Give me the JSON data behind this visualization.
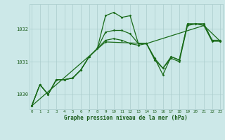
{
  "xlabel": "Graphe pression niveau de la mer (hPa)",
  "x_ticks": [
    0,
    1,
    2,
    3,
    4,
    5,
    6,
    7,
    8,
    9,
    10,
    11,
    12,
    13,
    14,
    15,
    16,
    17,
    18,
    19,
    20,
    21,
    22,
    23
  ],
  "y_ticks": [
    1030,
    1031,
    1032
  ],
  "ylim": [
    1029.55,
    1032.75
  ],
  "xlim": [
    -0.3,
    23.3
  ],
  "bg_color": "#cce8e8",
  "grid_color": "#aacccc",
  "line_color": "#1a6b1a",
  "font_color": "#1a5c1a",
  "line1": [
    1029.65,
    1030.3,
    1030.0,
    1030.45,
    1030.45,
    1030.5,
    1030.75,
    1031.15,
    1031.4,
    1032.4,
    1032.5,
    1032.35,
    1032.4,
    1031.55,
    1031.55,
    1031.1,
    1030.6,
    1031.15,
    1031.05,
    1032.15,
    1032.15,
    1032.15,
    1031.65,
    1031.65
  ],
  "line2": [
    1029.65,
    1030.3,
    1030.0,
    1030.45,
    1030.45,
    1030.5,
    1030.75,
    1031.15,
    1031.4,
    1031.9,
    1031.95,
    1031.95,
    1031.85,
    1031.55,
    1031.55,
    1031.1,
    1030.8,
    1031.15,
    1031.05,
    1032.15,
    1032.15,
    1032.15,
    1031.65,
    1031.65
  ],
  "line3": [
    1029.65,
    1030.3,
    1030.0,
    1030.45,
    1030.45,
    1030.5,
    1030.75,
    1031.15,
    1031.4,
    1031.65,
    1031.7,
    1031.65,
    1031.55,
    1031.5,
    1031.55,
    1031.05,
    1030.8,
    1031.1,
    1031.0,
    1032.1,
    1032.15,
    1032.1,
    1031.62,
    1031.62
  ],
  "line4_x": [
    0,
    9,
    14,
    21,
    23
  ],
  "line4_y": [
    1029.65,
    1031.6,
    1031.55,
    1032.1,
    1031.62
  ]
}
